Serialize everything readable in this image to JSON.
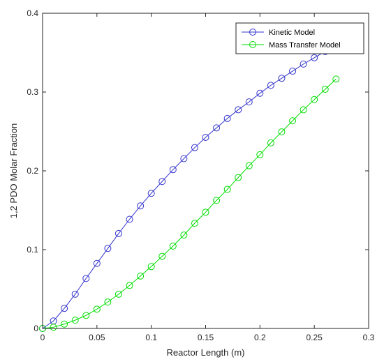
{
  "chart_data": {
    "type": "line",
    "xlabel": "Reactor Length (m)",
    "ylabel": "1,2 PDO Molar Fraction",
    "xlim": [
      0,
      0.3
    ],
    "ylim": [
      0,
      0.4
    ],
    "xticks": [
      0,
      0.05,
      0.1,
      0.15,
      0.2,
      0.25,
      0.3
    ],
    "yticks": [
      0,
      0.1,
      0.2,
      0.3,
      0.4
    ],
    "xtick_labels": [
      "0",
      "0.05",
      "0.1",
      "0.15",
      "0.2",
      "0.25",
      "0.3"
    ],
    "ytick_labels": [
      "0",
      "0.1",
      "0.2",
      "0.3",
      "0.4"
    ],
    "grid": false,
    "legend_position": "top-right",
    "x": [
      0,
      0.01,
      0.02,
      0.03,
      0.04,
      0.05,
      0.06,
      0.07,
      0.08,
      0.09,
      0.1,
      0.11,
      0.12,
      0.13,
      0.14,
      0.15,
      0.16,
      0.17,
      0.18,
      0.19,
      0.2,
      0.21,
      0.22,
      0.23,
      0.24,
      0.25,
      0.26,
      0.27
    ],
    "series": [
      {
        "name": "Kinetic Model",
        "color": "#3333cc",
        "marker": "circle",
        "values": [
          0,
          0.0095,
          0.0255,
          0.0435,
          0.0635,
          0.0825,
          0.1015,
          0.1205,
          0.1385,
          0.1555,
          0.1715,
          0.1865,
          0.2015,
          0.2155,
          0.2295,
          0.2425,
          0.2545,
          0.2665,
          0.2775,
          0.2875,
          0.2985,
          0.3085,
          0.3175,
          0.3265,
          0.3355,
          0.3435,
          0.3515,
          0.3585
        ]
      },
      {
        "name": "Mass Transfer Model",
        "color": "#00dd00",
        "marker": "circle",
        "values": [
          0,
          0.0015,
          0.0055,
          0.0105,
          0.0165,
          0.0245,
          0.0335,
          0.0435,
          0.0545,
          0.0665,
          0.0785,
          0.0915,
          0.1045,
          0.1185,
          0.1335,
          0.1475,
          0.1625,
          0.1765,
          0.1915,
          0.2065,
          0.2205,
          0.2355,
          0.2495,
          0.2635,
          0.2775,
          0.2905,
          0.3035,
          0.3165
        ]
      }
    ]
  }
}
